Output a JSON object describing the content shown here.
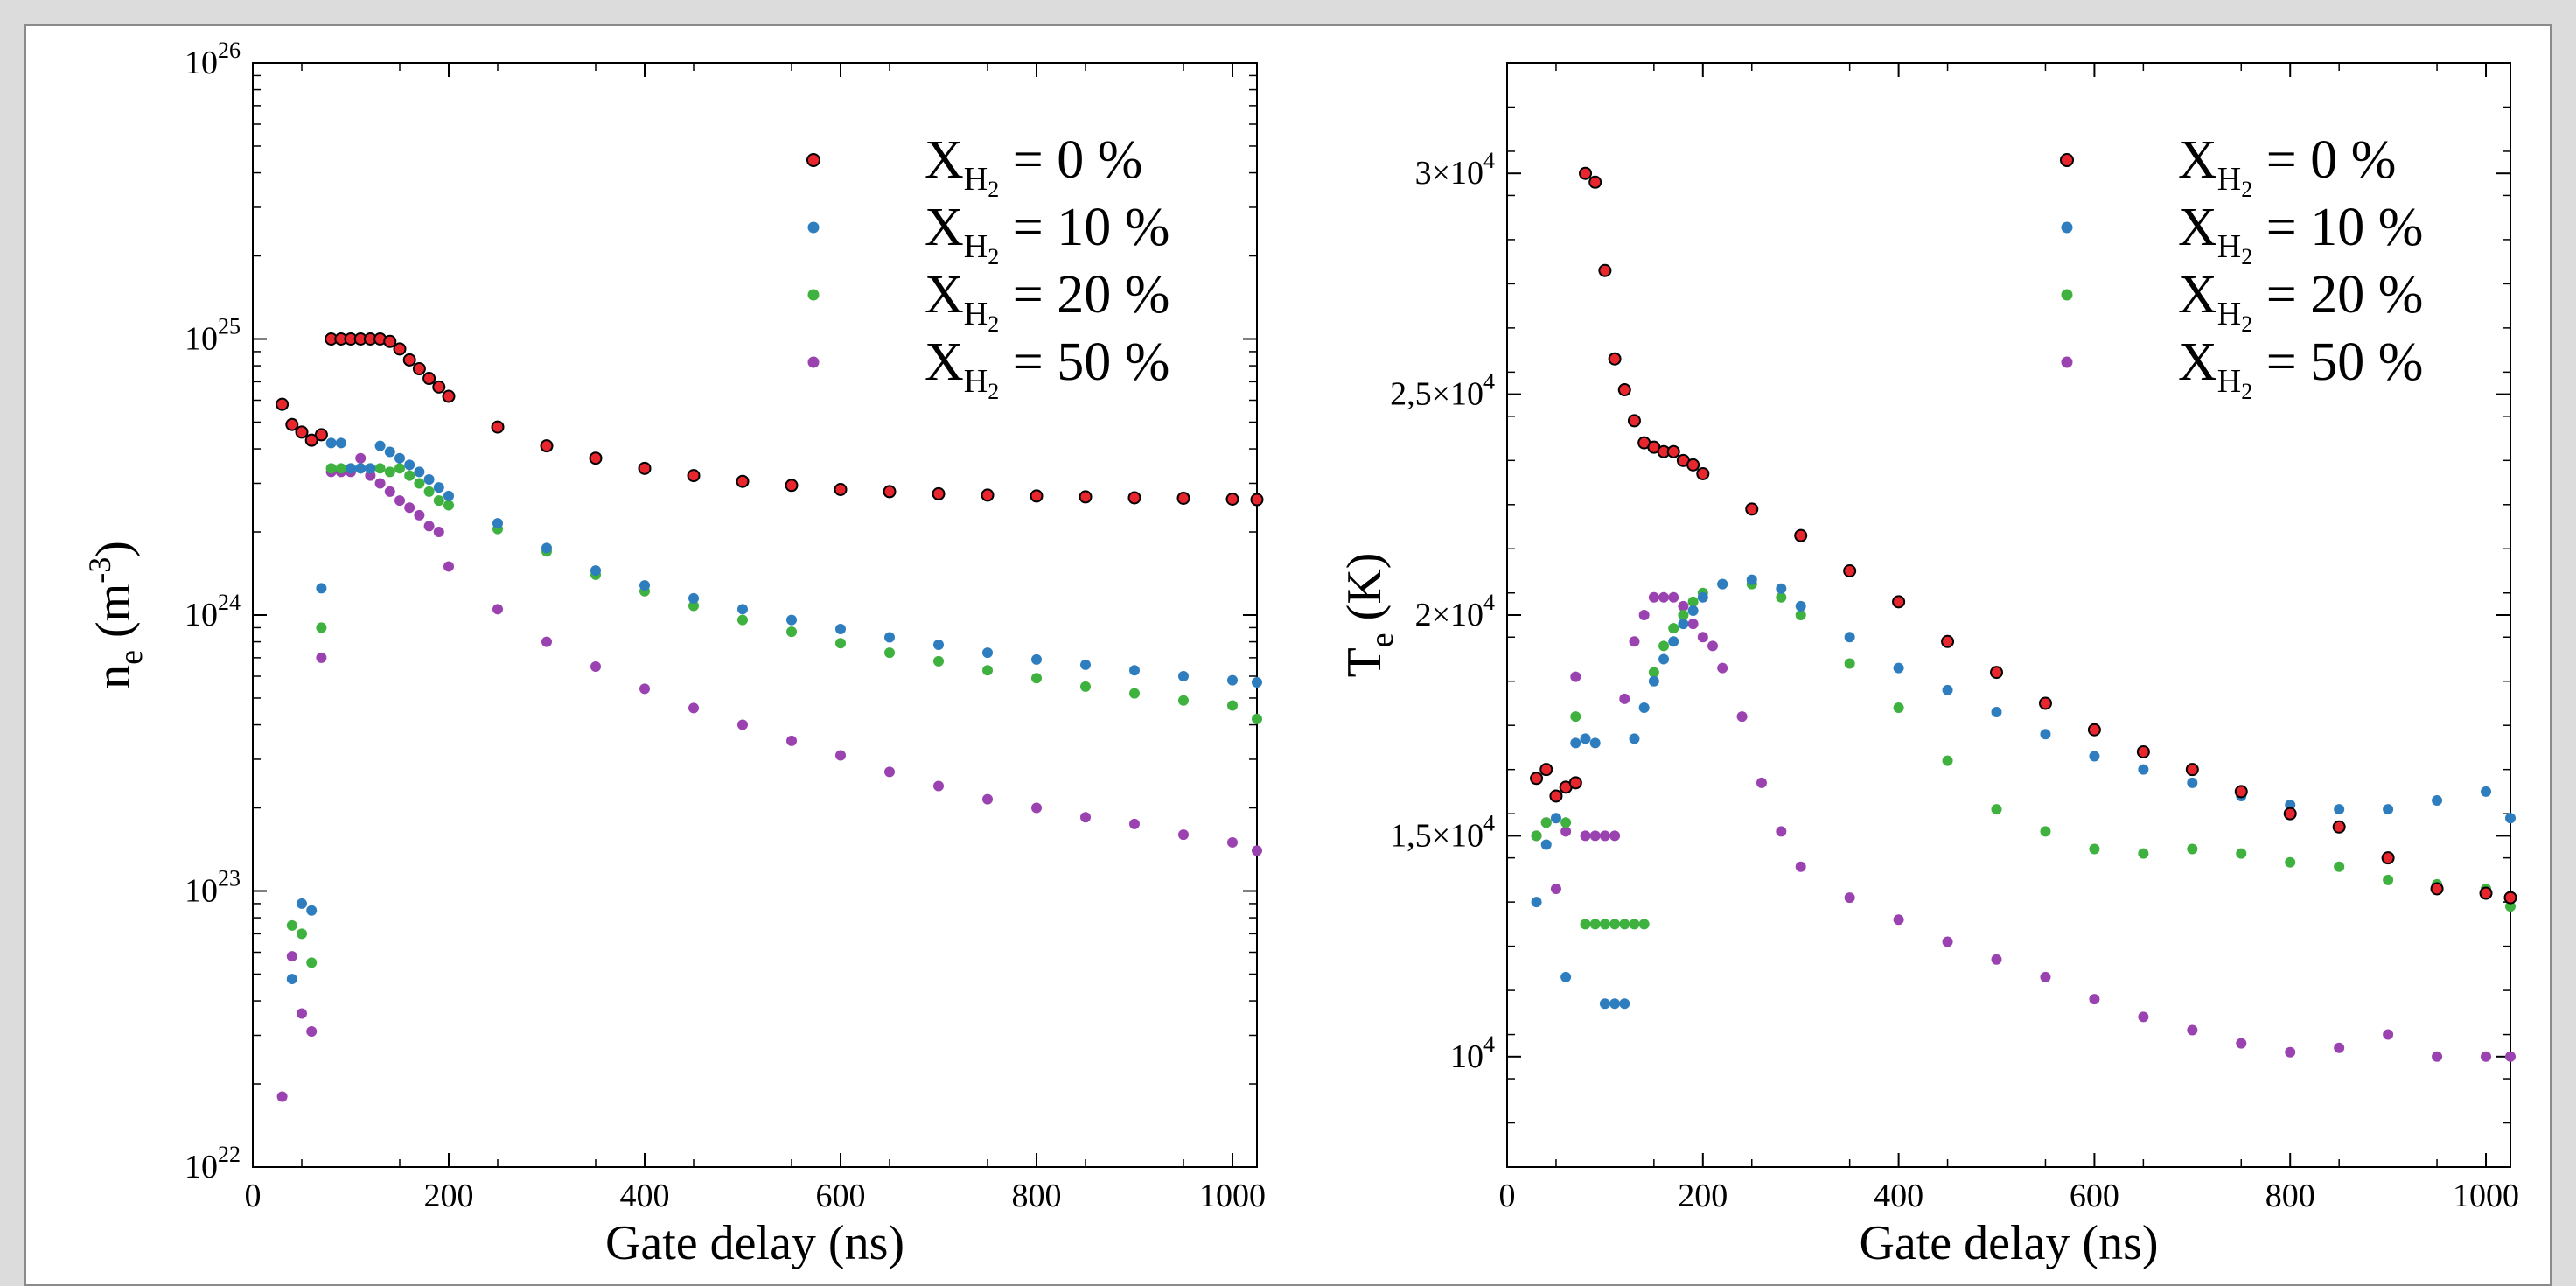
{
  "chart_data": [
    {
      "type": "scatter",
      "id": "ne",
      "xlabel": "Gate delay (ns)",
      "ylabel": {
        "main": "n",
        "sub": "e",
        "rest": " (m",
        "sup": "-3",
        "end": ")"
      },
      "xlim": [
        0,
        1025
      ],
      "ylim": [
        1e+22,
        1e+26
      ],
      "yscale": "log",
      "xticks": [
        0,
        200,
        400,
        600,
        800,
        1000
      ],
      "yticks": [
        {
          "value": 1e+22,
          "base": "10",
          "exp": "22"
        },
        {
          "value": 1e+23,
          "base": "10",
          "exp": "23"
        },
        {
          "value": 1e+24,
          "base": "10",
          "exp": "24"
        },
        {
          "value": 1e+25,
          "base": "10",
          "exp": "25"
        },
        {
          "value": 1e+26,
          "base": "10",
          "exp": "26"
        }
      ],
      "legend": "top-right",
      "series": [
        {
          "name": "X_H2 = 0 %",
          "color": "#e8262d",
          "edge": "#000000",
          "x": [
            30,
            40,
            50,
            60,
            70,
            80,
            90,
            100,
            110,
            120,
            130,
            140,
            150,
            160,
            170,
            180,
            190,
            200,
            250,
            300,
            350,
            400,
            450,
            500,
            550,
            600,
            650,
            700,
            750,
            800,
            850,
            900,
            950,
            1000,
            1025
          ],
          "y": [
            5.8e+24,
            4.9e+24,
            4.6e+24,
            4.3e+24,
            4.5e+24,
            1e+25,
            1e+25,
            1e+25,
            1e+25,
            1e+25,
            1e+25,
            9.8e+24,
            9.2e+24,
            8.4e+24,
            7.8e+24,
            7.2e+24,
            6.7e+24,
            6.2e+24,
            4.8e+24,
            4.1e+24,
            3.7e+24,
            3.4e+24,
            3.2e+24,
            3.05e+24,
            2.95e+24,
            2.85e+24,
            2.8e+24,
            2.75e+24,
            2.72e+24,
            2.7e+24,
            2.68e+24,
            2.66e+24,
            2.65e+24,
            2.63e+24,
            2.62e+24
          ]
        },
        {
          "name": "X_H2 = 10 %",
          "color": "#2e7ebf",
          "edge": "",
          "x": [
            40,
            50,
            60,
            70,
            80,
            90,
            100,
            110,
            120,
            130,
            140,
            150,
            160,
            170,
            180,
            190,
            200,
            250,
            300,
            350,
            400,
            450,
            500,
            550,
            600,
            650,
            700,
            750,
            800,
            850,
            900,
            950,
            1000,
            1025
          ],
          "y": [
            4.8e+22,
            9e+22,
            8.5e+22,
            1.25e+24,
            4.2e+24,
            4.2e+24,
            3.4e+24,
            3.4e+24,
            3.4e+24,
            4.1e+24,
            3.9e+24,
            3.7e+24,
            3.5e+24,
            3.3e+24,
            3.1e+24,
            2.9e+24,
            2.7e+24,
            2.15e+24,
            1.75e+24,
            1.45e+24,
            1.28e+24,
            1.15e+24,
            1.05e+24,
            9.6e+23,
            8.9e+23,
            8.3e+23,
            7.8e+23,
            7.3e+23,
            6.9e+23,
            6.6e+23,
            6.3e+23,
            6e+23,
            5.8e+23,
            5.7e+23
          ]
        },
        {
          "name": "X_H2 = 20 %",
          "color": "#3eb13f",
          "edge": "",
          "x": [
            40,
            50,
            60,
            70,
            80,
            90,
            100,
            110,
            120,
            130,
            140,
            150,
            160,
            170,
            180,
            190,
            200,
            250,
            300,
            350,
            400,
            450,
            500,
            550,
            600,
            650,
            700,
            750,
            800,
            850,
            900,
            950,
            1000,
            1025
          ],
          "y": [
            7.5e+22,
            7e+22,
            5.5e+22,
            9e+23,
            3.4e+24,
            3.4e+24,
            3.4e+24,
            3.4e+24,
            3.4e+24,
            3.4e+24,
            3.3e+24,
            3.4e+24,
            3.2e+24,
            3e+24,
            2.8e+24,
            2.6e+24,
            2.5e+24,
            2.05e+24,
            1.7e+24,
            1.4e+24,
            1.22e+24,
            1.08e+24,
            9.6e+23,
            8.7e+23,
            7.9e+23,
            7.3e+23,
            6.8e+23,
            6.3e+23,
            5.9e+23,
            5.5e+23,
            5.2e+23,
            4.9e+23,
            4.7e+23,
            4.2e+23
          ]
        },
        {
          "name": "X_H2 = 50 %",
          "color": "#9a42b0",
          "edge": "",
          "x": [
            30,
            40,
            50,
            60,
            70,
            80,
            90,
            100,
            110,
            120,
            130,
            140,
            150,
            160,
            170,
            180,
            190,
            200,
            250,
            300,
            350,
            400,
            450,
            500,
            550,
            600,
            650,
            700,
            750,
            800,
            850,
            900,
            950,
            1000,
            1025
          ],
          "y": [
            1.8e+22,
            5.8e+22,
            3.6e+22,
            3.1e+22,
            7e+23,
            3.3e+24,
            3.3e+24,
            3.3e+24,
            3.7e+24,
            3.2e+24,
            3e+24,
            2.8e+24,
            2.6e+24,
            2.45e+24,
            2.3e+24,
            2.1e+24,
            2e+24,
            1.5e+24,
            1.05e+24,
            8e+23,
            6.5e+23,
            5.4e+23,
            4.6e+23,
            4e+23,
            3.5e+23,
            3.1e+23,
            2.7e+23,
            2.4e+23,
            2.15e+23,
            2e+23,
            1.85e+23,
            1.75e+23,
            1.6e+23,
            1.5e+23,
            1.4e+23
          ]
        }
      ]
    },
    {
      "type": "scatter",
      "id": "te",
      "xlabel": "Gate delay (ns)",
      "ylabel": {
        "main": "T",
        "sub": "e",
        "rest": " (K)",
        "sup": "",
        "end": ""
      },
      "xlim": [
        0,
        1025
      ],
      "ylim": [
        7500,
        32500
      ],
      "yscale": "linear",
      "xticks": [
        0,
        200,
        400,
        600,
        800,
        1000
      ],
      "yticks": [
        {
          "value": 10000,
          "base": "10",
          "exp": "4"
        },
        {
          "value": 15000,
          "base": "1,5×10",
          "exp": "4"
        },
        {
          "value": 20000,
          "base": "2×10",
          "exp": "4"
        },
        {
          "value": 25000,
          "base": "2,5×10",
          "exp": "4"
        },
        {
          "value": 30000,
          "base": "3×10",
          "exp": "4"
        }
      ],
      "legend": "top-right",
      "series": [
        {
          "name": "X_H2 = 0 %",
          "color": "#e8262d",
          "edge": "#000000",
          "x": [
            30,
            40,
            50,
            60,
            70,
            80,
            90,
            100,
            110,
            120,
            130,
            140,
            150,
            160,
            170,
            180,
            190,
            200,
            250,
            300,
            350,
            400,
            450,
            500,
            550,
            600,
            650,
            700,
            750,
            800,
            850,
            900,
            950,
            1000,
            1025
          ],
          "y": [
            16300,
            16500,
            15900,
            16100,
            16200,
            30000,
            29800,
            27800,
            25800,
            25100,
            24400,
            23900,
            23800,
            23700,
            23700,
            23500,
            23400,
            23200,
            22400,
            21800,
            21000,
            20300,
            19400,
            18700,
            18000,
            17400,
            16900,
            16500,
            16000,
            15500,
            15200,
            14500,
            13800,
            13700,
            13600
          ]
        },
        {
          "name": "X_H2 = 10 %",
          "color": "#2e7ebf",
          "edge": "",
          "x": [
            30,
            40,
            50,
            60,
            70,
            80,
            90,
            100,
            110,
            120,
            130,
            140,
            150,
            160,
            170,
            180,
            190,
            200,
            220,
            250,
            280,
            300,
            350,
            400,
            450,
            500,
            550,
            600,
            650,
            700,
            750,
            800,
            850,
            900,
            950,
            1000,
            1025
          ],
          "y": [
            13500,
            14800,
            15400,
            11800,
            17100,
            17200,
            17100,
            11200,
            11200,
            11200,
            17200,
            17900,
            18500,
            19000,
            19400,
            19800,
            20100,
            20400,
            20700,
            20800,
            20600,
            20200,
            19500,
            18800,
            18300,
            17800,
            17300,
            16800,
            16500,
            16200,
            15900,
            15700,
            15600,
            15600,
            15800,
            16000,
            15400
          ]
        },
        {
          "name": "X_H2 = 20 %",
          "color": "#3eb13f",
          "edge": "",
          "x": [
            30,
            40,
            50,
            60,
            70,
            80,
            90,
            100,
            110,
            120,
            130,
            140,
            150,
            160,
            170,
            180,
            190,
            200,
            220,
            250,
            280,
            300,
            350,
            400,
            450,
            500,
            550,
            600,
            650,
            700,
            750,
            800,
            850,
            900,
            950,
            1000,
            1025
          ],
          "y": [
            15000,
            15300,
            15900,
            15300,
            17700,
            13000,
            13000,
            13000,
            13000,
            13000,
            13000,
            13000,
            18700,
            19300,
            19700,
            20000,
            20300,
            20500,
            20700,
            20700,
            20400,
            20000,
            18900,
            17900,
            16700,
            15600,
            15100,
            14700,
            14600,
            14700,
            14600,
            14400,
            14300,
            14000,
            13900,
            13800,
            13400
          ]
        },
        {
          "name": "X_H2 = 50 %",
          "color": "#9a42b0",
          "edge": "",
          "x": [
            30,
            40,
            50,
            60,
            70,
            80,
            90,
            100,
            110,
            120,
            130,
            140,
            150,
            160,
            170,
            180,
            190,
            200,
            210,
            220,
            240,
            260,
            280,
            300,
            350,
            400,
            450,
            500,
            550,
            600,
            650,
            700,
            750,
            800,
            850,
            900,
            950,
            1000,
            1025
          ],
          "y": [
            15000,
            15300,
            13800,
            15100,
            18600,
            15000,
            15000,
            15000,
            15000,
            18100,
            19400,
            20000,
            20400,
            20400,
            20400,
            20200,
            19800,
            19500,
            19300,
            18800,
            17700,
            16200,
            15100,
            14300,
            13600,
            13100,
            12600,
            12200,
            11800,
            11300,
            10900,
            10600,
            10300,
            10100,
            10200,
            10500,
            10000,
            10000,
            10000
          ]
        }
      ]
    }
  ],
  "legend_labels": [
    {
      "main": "X",
      "sub1": "H",
      "sub2": "2",
      "rest": " = 0 %"
    },
    {
      "main": "X",
      "sub1": "H",
      "sub2": "2",
      "rest": " = 10 %"
    },
    {
      "main": "X",
      "sub1": "H",
      "sub2": "2",
      "rest": " = 20 %"
    },
    {
      "main": "X",
      "sub1": "H",
      "sub2": "2",
      "rest": " = 50 %"
    }
  ]
}
